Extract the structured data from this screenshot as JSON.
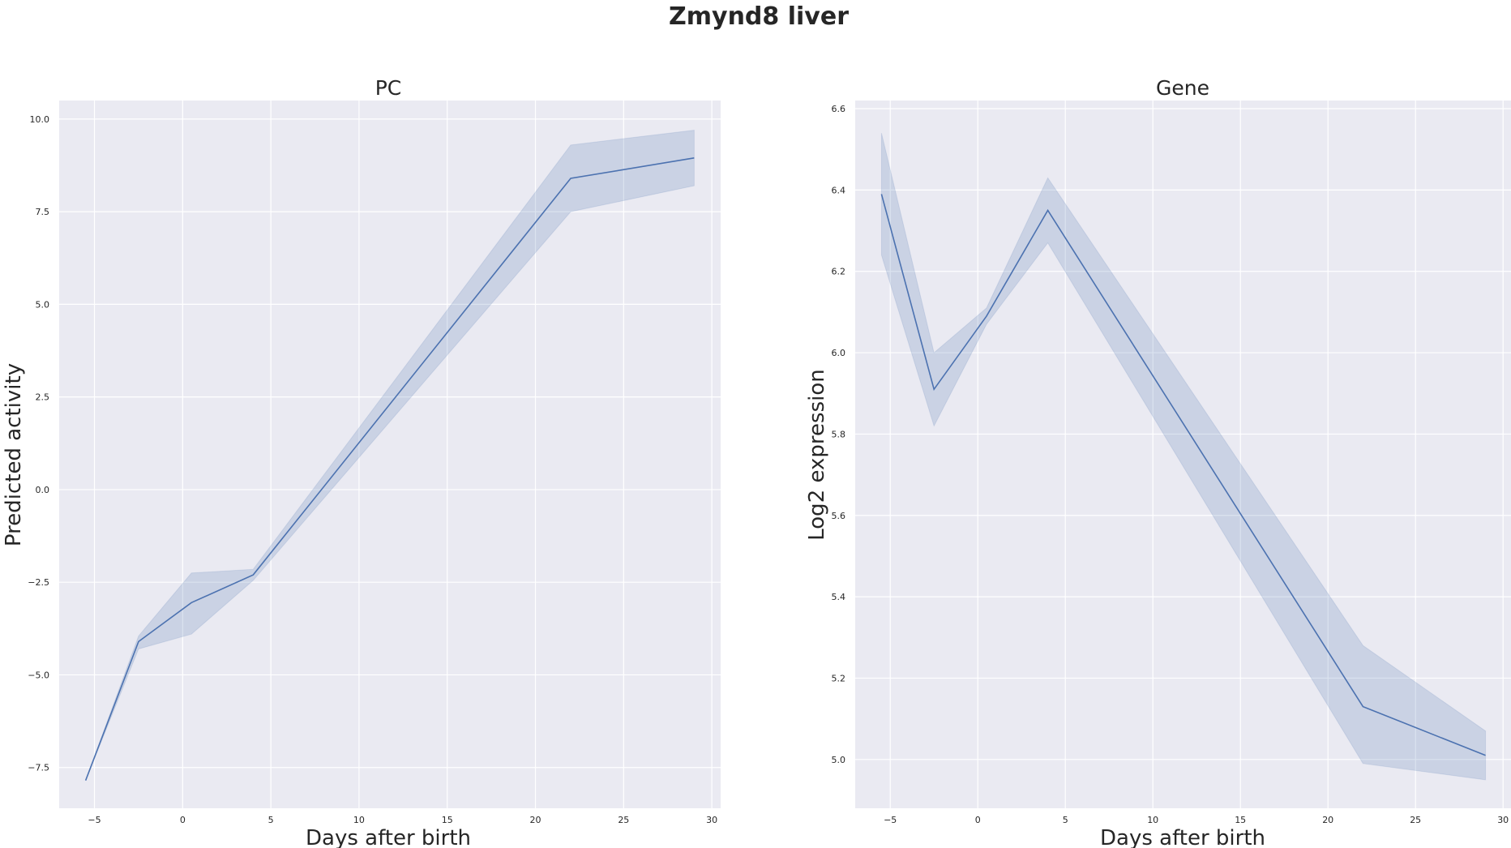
{
  "figure_title": "Zmynd8 liver",
  "colors": {
    "line": "#4c72b0",
    "band": "#4c72b0",
    "background": "#eaeaf2",
    "grid": "#ffffff"
  },
  "chart_data": [
    {
      "type": "line",
      "title": "PC",
      "xlabel": "Days after birth",
      "ylabel": "Predicted activity",
      "xlim": [
        -7,
        30.5
      ],
      "ylim": [
        -8.6,
        10.5
      ],
      "xticks": [
        -5,
        0,
        5,
        10,
        15,
        20,
        25,
        30
      ],
      "xtick_labels": [
        "−5",
        "0",
        "5",
        "10",
        "15",
        "20",
        "25",
        "30"
      ],
      "yticks": [
        -7.5,
        -5.0,
        -2.5,
        0.0,
        2.5,
        5.0,
        7.5,
        10.0
      ],
      "ytick_labels": [
        "−7.5",
        "−5.0",
        "−2.5",
        "0.0",
        "2.5",
        "5.0",
        "7.5",
        "10.0"
      ],
      "grid": true,
      "series": [
        {
          "x": [
            -5.5,
            -2.5,
            0.5,
            4,
            22,
            29
          ],
          "y": [
            -7.85,
            -4.1,
            -3.05,
            -2.3,
            8.4,
            8.95
          ],
          "lower": [
            -7.85,
            -4.3,
            -3.9,
            -2.45,
            7.5,
            8.2
          ],
          "upper": [
            -7.85,
            -3.95,
            -2.25,
            -2.15,
            9.3,
            9.7
          ]
        }
      ]
    },
    {
      "type": "line",
      "title": "Gene",
      "xlabel": "Days after birth",
      "ylabel": "Log2 expression",
      "xlim": [
        -7,
        30.5
      ],
      "ylim": [
        4.88,
        6.62
      ],
      "xticks": [
        -5,
        0,
        5,
        10,
        15,
        20,
        25,
        30
      ],
      "xtick_labels": [
        "−5",
        "0",
        "5",
        "10",
        "15",
        "20",
        "25",
        "30"
      ],
      "yticks": [
        5.0,
        5.2,
        5.4,
        5.6,
        5.8,
        6.0,
        6.2,
        6.4,
        6.6
      ],
      "ytick_labels": [
        "5.0",
        "5.2",
        "5.4",
        "5.6",
        "5.8",
        "6.0",
        "6.2",
        "6.4",
        "6.6"
      ],
      "grid": true,
      "series": [
        {
          "x": [
            -5.5,
            -2.5,
            0.5,
            4,
            22,
            29
          ],
          "y": [
            6.39,
            5.91,
            6.09,
            6.35,
            5.13,
            5.01
          ],
          "lower": [
            6.24,
            5.82,
            6.07,
            6.27,
            4.99,
            4.95
          ],
          "upper": [
            6.54,
            6.0,
            6.11,
            6.43,
            5.28,
            5.07
          ]
        }
      ]
    }
  ]
}
